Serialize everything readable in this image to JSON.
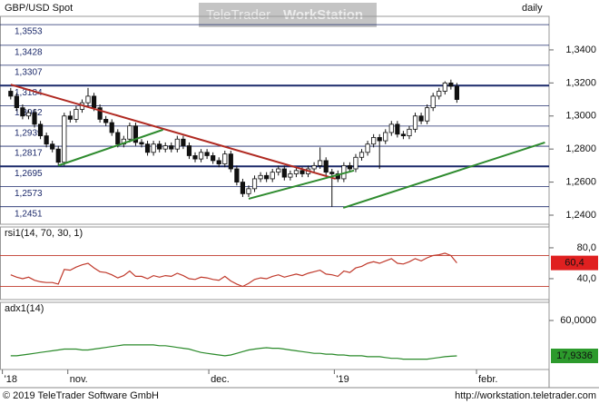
{
  "header": {
    "watermark_a": "TeleTrader",
    "watermark_b": "WorkStation"
  },
  "footer": {
    "copyright": "© 2019 TeleTrader Software GmbH",
    "url": "http://workstation.teletrader.com"
  },
  "chart_data": [
    {
      "type": "candlestick",
      "title": "GBP/USD Spot",
      "interval": "daily",
      "xlim": [
        -1.8,
        90.5
      ],
      "ylim": [
        1.2345,
        1.3603
      ],
      "yticks": [
        {
          "value": 1.24,
          "label": "1,2400"
        },
        {
          "value": 1.26,
          "label": "1,2600"
        },
        {
          "value": 1.28,
          "label": "1,2800"
        },
        {
          "value": 1.3,
          "label": "1,3000"
        },
        {
          "value": 1.32,
          "label": "1,3200"
        },
        {
          "value": 1.34,
          "label": "1,3400"
        }
      ],
      "levels": [
        {
          "value": 1.3553,
          "label": "1,3553"
        },
        {
          "value": 1.3428,
          "label": "1,3428"
        },
        {
          "value": 1.3307,
          "label": "1,3307"
        },
        {
          "value": 1.3184,
          "label": "1,3184",
          "bold": true
        },
        {
          "value": 1.3062,
          "label": "1,3062"
        },
        {
          "value": 1.2939,
          "label": "1,2939"
        },
        {
          "value": 1.2817,
          "label": "1,2817"
        },
        {
          "value": 1.2695,
          "label": "1,2695",
          "bold": true
        },
        {
          "value": 1.2573,
          "label": "1,2573"
        },
        {
          "value": 1.2451,
          "label": "1,2451"
        }
      ],
      "level_color": "#1c2a6b",
      "open": [
        1.315,
        1.312,
        1.305,
        1.3,
        1.302,
        1.295,
        1.288,
        1.283,
        1.28,
        1.272,
        1.3,
        1.298,
        1.304,
        1.308,
        1.312,
        1.305,
        1.298,
        1.296,
        1.29,
        1.283,
        1.286,
        1.294,
        1.284,
        1.283,
        1.278,
        1.283,
        1.28,
        1.282,
        1.28,
        1.286,
        1.282,
        1.276,
        1.274,
        1.278,
        1.276,
        1.273,
        1.271,
        1.277,
        1.268,
        1.26,
        1.253,
        1.256,
        1.262,
        1.264,
        1.262,
        1.266,
        1.268,
        1.263,
        1.265,
        1.267,
        1.265,
        1.268,
        1.27,
        1.273,
        1.266,
        1.265,
        1.262,
        1.27,
        1.268,
        1.275,
        1.278,
        1.283,
        1.287,
        1.285,
        1.29,
        1.295,
        1.289,
        1.288,
        1.292,
        1.3,
        1.297,
        1.305,
        1.312,
        1.315,
        1.32,
        1.318
      ],
      "high": [
        1.317,
        1.314,
        1.307,
        1.304,
        1.304,
        1.297,
        1.29,
        1.285,
        1.282,
        1.302,
        1.303,
        1.306,
        1.31,
        1.317,
        1.314,
        1.307,
        1.3,
        1.298,
        1.292,
        1.288,
        1.296,
        1.296,
        1.286,
        1.285,
        1.285,
        1.285,
        1.284,
        1.284,
        1.288,
        1.288,
        1.284,
        1.278,
        1.28,
        1.28,
        1.278,
        1.275,
        1.279,
        1.279,
        1.27,
        1.262,
        1.258,
        1.264,
        1.266,
        1.266,
        1.268,
        1.27,
        1.27,
        1.267,
        1.269,
        1.269,
        1.27,
        1.272,
        1.281,
        1.275,
        1.268,
        1.267,
        1.272,
        1.272,
        1.277,
        1.28,
        1.285,
        1.289,
        1.289,
        1.292,
        1.297,
        1.297,
        1.291,
        1.294,
        1.302,
        1.302,
        1.307,
        1.314,
        1.317,
        1.321,
        1.322,
        1.32
      ],
      "low": [
        1.31,
        1.303,
        1.298,
        1.298,
        1.293,
        1.286,
        1.281,
        1.278,
        1.27,
        1.27,
        1.296,
        1.296,
        1.302,
        1.306,
        1.303,
        1.296,
        1.294,
        1.288,
        1.281,
        1.281,
        1.284,
        1.282,
        1.281,
        1.276,
        1.276,
        1.278,
        1.278,
        1.278,
        1.278,
        1.28,
        1.274,
        1.272,
        1.272,
        1.274,
        1.271,
        1.269,
        1.269,
        1.266,
        1.258,
        1.251,
        1.251,
        1.254,
        1.26,
        1.26,
        1.26,
        1.264,
        1.261,
        1.261,
        1.263,
        1.263,
        1.263,
        1.266,
        1.268,
        1.264,
        1.245,
        1.26,
        1.26,
        1.266,
        1.266,
        1.273,
        1.276,
        1.281,
        1.268,
        1.283,
        1.288,
        1.287,
        1.286,
        1.286,
        1.29,
        1.295,
        1.295,
        1.303,
        1.31,
        1.313,
        1.316,
        1.308
      ],
      "close": [
        1.312,
        1.305,
        1.3,
        1.302,
        1.295,
        1.288,
        1.283,
        1.28,
        1.272,
        1.3,
        1.298,
        1.304,
        1.308,
        1.312,
        1.305,
        1.298,
        1.296,
        1.29,
        1.283,
        1.286,
        1.294,
        1.284,
        1.283,
        1.278,
        1.283,
        1.28,
        1.282,
        1.28,
        1.286,
        1.282,
        1.276,
        1.274,
        1.278,
        1.276,
        1.273,
        1.271,
        1.277,
        1.268,
        1.26,
        1.253,
        1.256,
        1.262,
        1.264,
        1.262,
        1.266,
        1.268,
        1.263,
        1.265,
        1.267,
        1.265,
        1.268,
        1.27,
        1.273,
        1.266,
        1.265,
        1.262,
        1.27,
        1.268,
        1.275,
        1.278,
        1.283,
        1.287,
        1.285,
        1.29,
        1.295,
        1.289,
        1.288,
        1.292,
        1.3,
        1.297,
        1.305,
        1.312,
        1.315,
        1.32,
        1.318,
        1.31
      ],
      "trendlines": [
        {
          "color": "#b02a22",
          "x": [
            0,
            54.6
          ],
          "y": [
            1.319,
            1.262
          ]
        },
        {
          "color": "#2e8b2e",
          "x": [
            8,
            25.6
          ],
          "y": [
            1.27,
            1.2917
          ]
        },
        {
          "color": "#2e8b2e",
          "x": [
            40,
            57.7
          ],
          "y": [
            1.2499,
            1.267
          ]
        },
        {
          "color": "#2e8b2e",
          "x": [
            55.9,
            89.8
          ],
          "y": [
            1.2444,
            1.284
          ]
        }
      ]
    },
    {
      "type": "line",
      "label": "rsi1(14, 70, 30, 1)",
      "color": "#c0392b",
      "xlim": [
        -1.8,
        90.5
      ],
      "ylim": [
        12.9,
        107
      ],
      "yticks": [
        {
          "value": 40,
          "label": "40,0"
        },
        {
          "value": 80,
          "label": "80,0"
        }
      ],
      "bands": [
        70,
        30
      ],
      "band_color": "#c0392b",
      "values": [
        45,
        42,
        40,
        42,
        38,
        36,
        35,
        35,
        33,
        52,
        51,
        55,
        58,
        60,
        54,
        49,
        48,
        45,
        41,
        44,
        50,
        43,
        43,
        40,
        44,
        42,
        44,
        43,
        47,
        44,
        40,
        39,
        42,
        41,
        39,
        38,
        43,
        37,
        33,
        30,
        34,
        39,
        41,
        40,
        43,
        45,
        42,
        44,
        46,
        44,
        47,
        49,
        51,
        46,
        45,
        43,
        50,
        48,
        54,
        56,
        60,
        62,
        60,
        63,
        66,
        60,
        59,
        62,
        66,
        63,
        67,
        70,
        71,
        73,
        70,
        60.4
      ],
      "last_label": "60,4",
      "last_color": "#e02020"
    },
    {
      "type": "line",
      "label": "adx1(14)",
      "color": "#2a8a2a",
      "xlim": [
        -1.8,
        90.5
      ],
      "ylim": [
        1.75,
        81.6
      ],
      "yticks": [
        {
          "value": 60,
          "label": "60,0000"
        }
      ],
      "values": [
        18,
        18,
        19,
        20,
        21,
        22,
        23,
        24,
        25,
        26,
        26,
        26,
        25,
        25,
        26,
        27,
        28,
        29,
        30,
        31,
        31,
        31,
        31,
        31,
        31,
        30,
        30,
        29,
        28,
        27,
        26,
        24,
        22,
        21,
        20,
        19,
        18,
        19,
        21,
        23,
        25,
        26,
        27,
        27.6,
        27,
        27,
        26,
        25,
        24,
        23,
        22,
        21,
        21,
        20,
        20,
        19,
        19,
        18,
        18,
        18,
        17,
        17,
        17,
        16,
        15,
        15,
        14,
        14,
        14,
        14,
        14,
        15,
        16,
        17,
        17.5,
        17.9336
      ],
      "last_label": "17,9336",
      "last_color": "#2c9a2c",
      "xticks": [
        {
          "value": -1.4,
          "label": "'18"
        },
        {
          "value": 9.6,
          "label": "nov."
        },
        {
          "value": 33.3,
          "label": "dec."
        },
        {
          "value": 54.4,
          "label": "'19"
        },
        {
          "value": 78.3,
          "label": "febr."
        }
      ]
    }
  ]
}
